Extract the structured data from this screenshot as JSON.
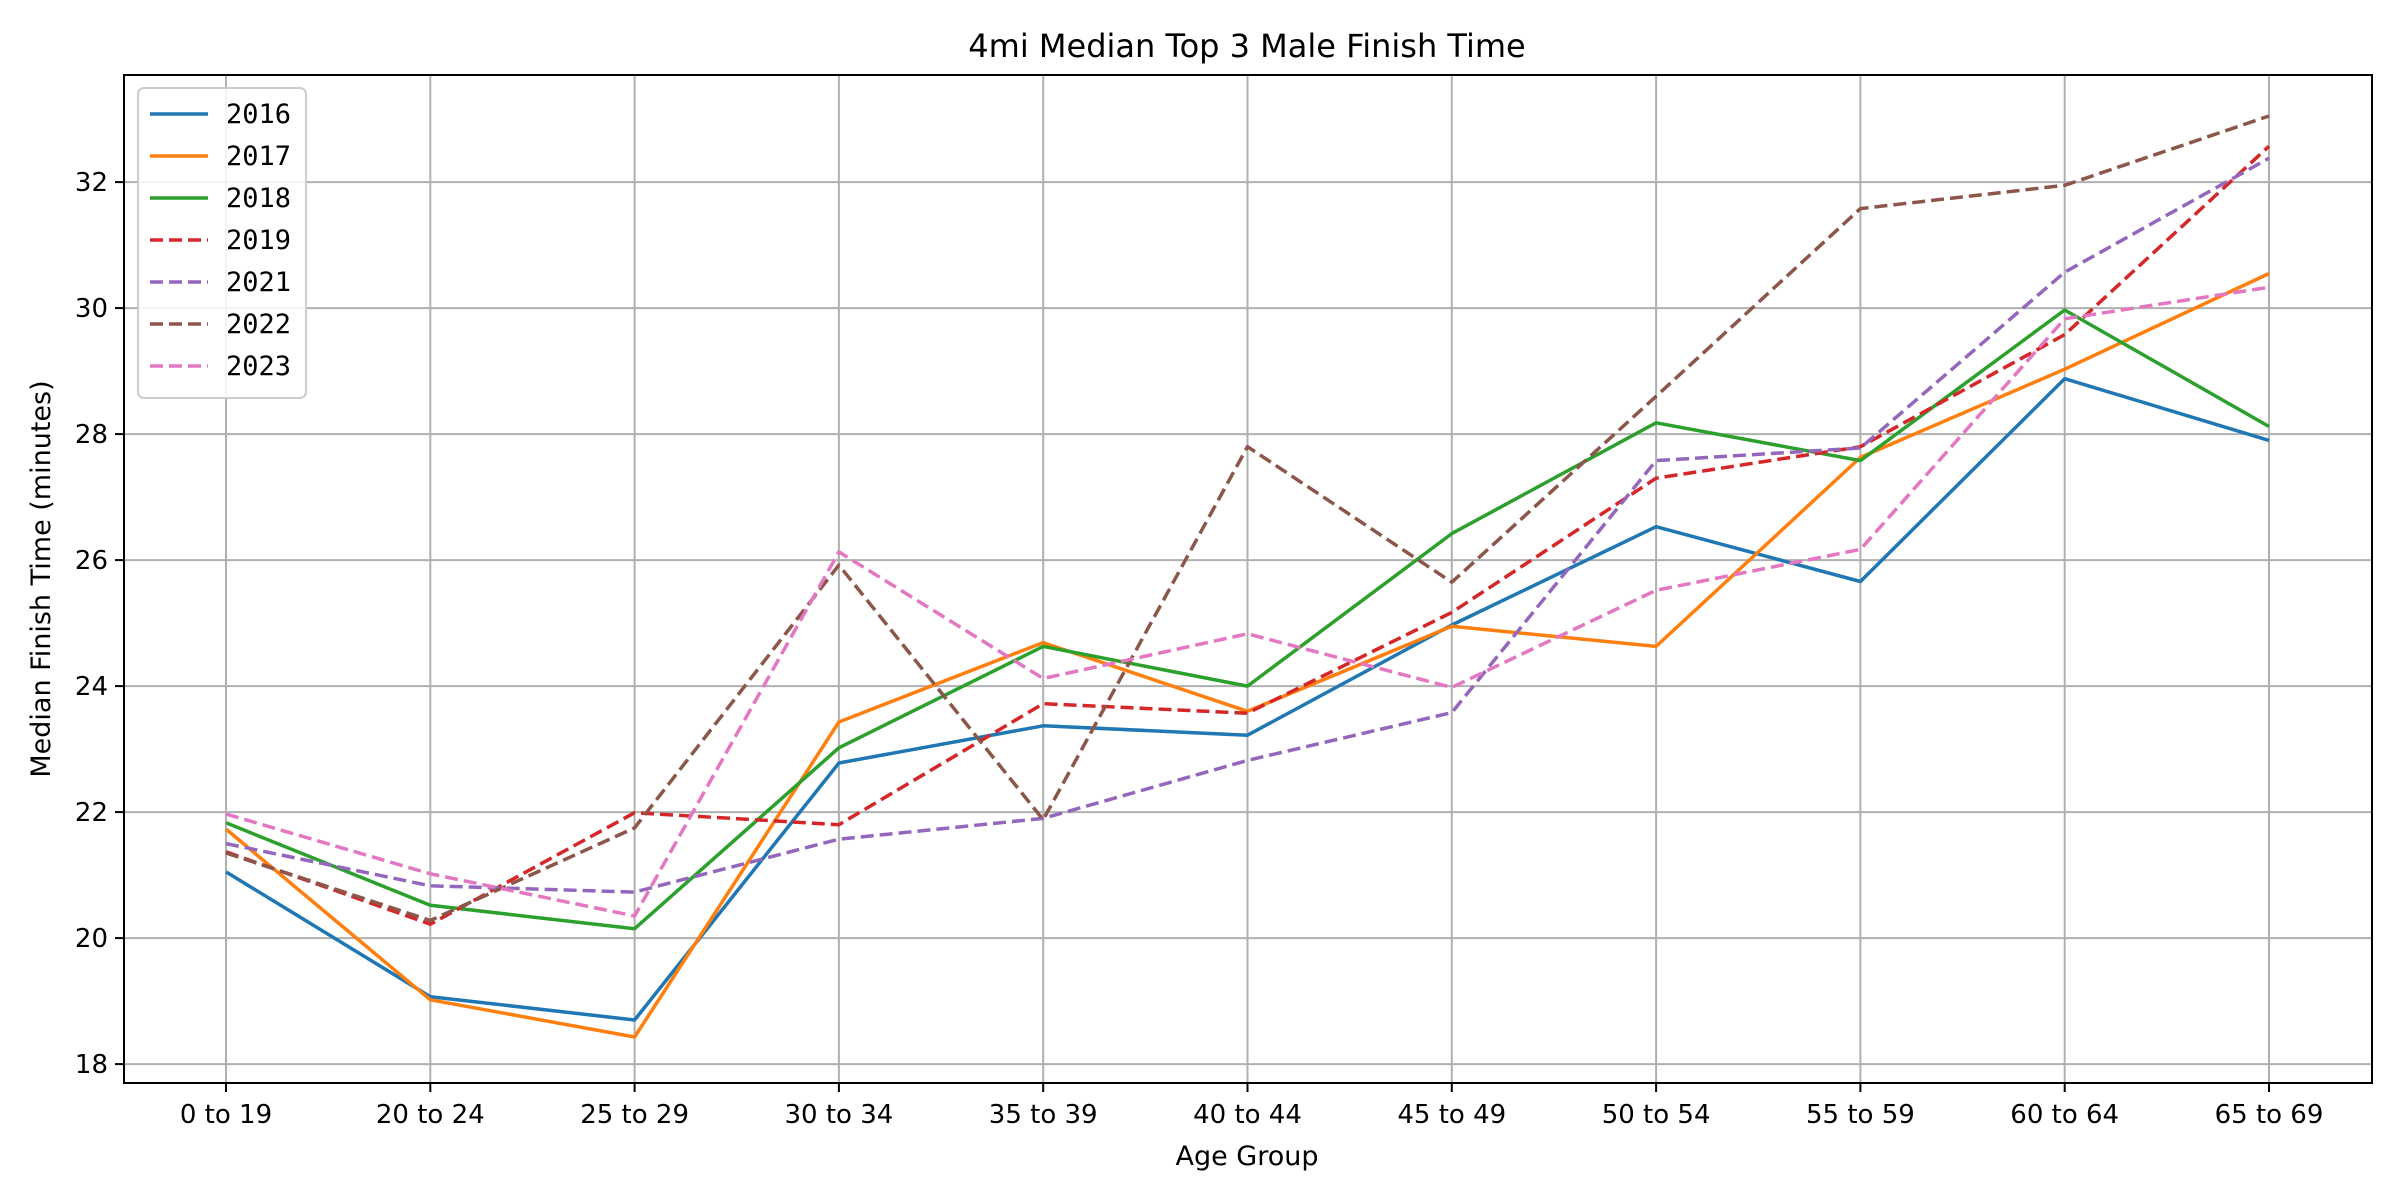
{
  "chart_data": {
    "type": "line",
    "title": "4mi Median Top 3 Male Finish Time",
    "xlabel": "Age Group",
    "ylabel": "Median Finish Time (minutes)",
    "categories": [
      "0 to 19",
      "20 to 24",
      "25 to 29",
      "30 to 34",
      "35 to 39",
      "40 to 44",
      "45 to 49",
      "50 to 54",
      "55 to 59",
      "60 to 64",
      "65 to 69"
    ],
    "ylim": [
      17.7,
      33.7
    ],
    "yticks": [
      18,
      20,
      22,
      24,
      26,
      28,
      30,
      32
    ],
    "grid": true,
    "legend_position": "top-left",
    "series": [
      {
        "name": "2016",
        "color": "#1f77b4",
        "dashed": false,
        "values": [
          21.05,
          19.07,
          18.7,
          22.78,
          23.37,
          23.22,
          24.97,
          26.53,
          25.66,
          28.88,
          27.9
        ]
      },
      {
        "name": "2017",
        "color": "#ff7f0e",
        "dashed": false,
        "values": [
          21.73,
          19.02,
          18.43,
          23.43,
          24.69,
          23.6,
          24.95,
          24.63,
          27.63,
          29.03,
          30.55
        ]
      },
      {
        "name": "2018",
        "color": "#2ca02c",
        "dashed": false,
        "values": [
          21.83,
          20.52,
          20.15,
          23.02,
          24.63,
          24.0,
          26.42,
          28.18,
          27.58,
          29.97,
          28.12
        ]
      },
      {
        "name": "2019",
        "color": "#d62728",
        "dashed": true,
        "values": [
          21.37,
          20.22,
          21.99,
          21.8,
          23.72,
          23.57,
          25.17,
          27.3,
          27.8,
          29.58,
          32.57
        ]
      },
      {
        "name": "2021",
        "color": "#9467bd",
        "dashed": true,
        "values": [
          21.5,
          20.83,
          20.73,
          21.57,
          21.9,
          22.82,
          23.58,
          27.58,
          27.78,
          30.57,
          32.38
        ]
      },
      {
        "name": "2022",
        "color": "#8c564b",
        "dashed": true,
        "values": [
          21.35,
          20.28,
          21.75,
          25.92,
          21.88,
          27.8,
          25.65,
          28.6,
          31.58,
          31.95,
          33.05
        ]
      },
      {
        "name": "2023",
        "color": "#e377c2",
        "dashed": true,
        "values": [
          21.97,
          21.02,
          20.35,
          26.13,
          24.12,
          24.83,
          23.98,
          25.52,
          26.17,
          29.83,
          30.33
        ]
      }
    ]
  }
}
